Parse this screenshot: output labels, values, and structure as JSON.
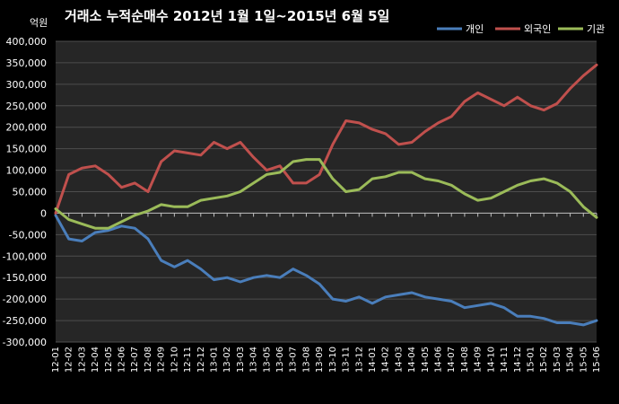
{
  "chart_data": {
    "type": "line",
    "title": "거래소  누적순매수 2012년 1월 1일~2015년 6월 5일",
    "unit_label": "억원",
    "ylim": [
      -300000,
      400000
    ],
    "yticks": [
      "400,000",
      "350,000",
      "300,000",
      "250,000",
      "200,000",
      "150,000",
      "100,000",
      "50,000",
      "0",
      "-50,000",
      "-100,000",
      "-150,000",
      "-200,000",
      "-250,000",
      "-300,000"
    ],
    "ytick_values": [
      400000,
      350000,
      300000,
      250000,
      200000,
      150000,
      100000,
      50000,
      0,
      -50000,
      -100000,
      -150000,
      -200000,
      -250000,
      -300000
    ],
    "x_labels": [
      "12-01",
      "12-02",
      "12-03",
      "12-04",
      "12-05",
      "12-06",
      "12-07",
      "12-08",
      "12-09",
      "12-10",
      "12-11",
      "12-12",
      "13-01",
      "13-02",
      "13-03",
      "13-04",
      "13-05",
      "13-06",
      "13-07",
      "13-08",
      "13-09",
      "13-10",
      "13-11",
      "13-12",
      "14-01",
      "14-02",
      "14-03",
      "14-04",
      "14-05",
      "14-06",
      "14-07",
      "14-08",
      "14-09",
      "14-10",
      "14-11",
      "14-12",
      "15-01",
      "15-02",
      "15-03",
      "15-04",
      "15-05",
      "15-06"
    ],
    "legend_position": "top-right",
    "series": [
      {
        "name": "개인",
        "color": "#4A7EBB",
        "values": [
          -5000,
          -60000,
          -65000,
          -45000,
          -40000,
          -30000,
          -35000,
          -60000,
          -110000,
          -125000,
          -110000,
          -130000,
          -155000,
          -150000,
          -160000,
          -150000,
          -145000,
          -150000,
          -130000,
          -145000,
          -165000,
          -200000,
          -205000,
          -195000,
          -210000,
          -195000,
          -190000,
          -185000,
          -195000,
          -200000,
          -205000,
          -220000,
          -215000,
          -210000,
          -220000,
          -240000,
          -240000,
          -245000,
          -255000,
          -255000,
          -260000,
          -250000
        ]
      },
      {
        "name": "외국인",
        "color": "#C0504D",
        "values": [
          0,
          90000,
          105000,
          110000,
          90000,
          60000,
          70000,
          50000,
          120000,
          145000,
          140000,
          135000,
          165000,
          150000,
          165000,
          130000,
          100000,
          110000,
          70000,
          70000,
          90000,
          160000,
          215000,
          210000,
          195000,
          185000,
          160000,
          165000,
          190000,
          210000,
          225000,
          260000,
          280000,
          265000,
          250000,
          270000,
          250000,
          240000,
          255000,
          290000,
          320000,
          345000
        ]
      },
      {
        "name": "기관",
        "color": "#9BBB59",
        "values": [
          10000,
          -15000,
          -25000,
          -35000,
          -35000,
          -20000,
          -5000,
          5000,
          20000,
          15000,
          15000,
          30000,
          35000,
          40000,
          50000,
          70000,
          90000,
          95000,
          120000,
          125000,
          125000,
          80000,
          50000,
          55000,
          80000,
          85000,
          95000,
          95000,
          80000,
          75000,
          65000,
          45000,
          30000,
          35000,
          50000,
          65000,
          75000,
          80000,
          70000,
          50000,
          15000,
          -10000
        ]
      }
    ]
  }
}
